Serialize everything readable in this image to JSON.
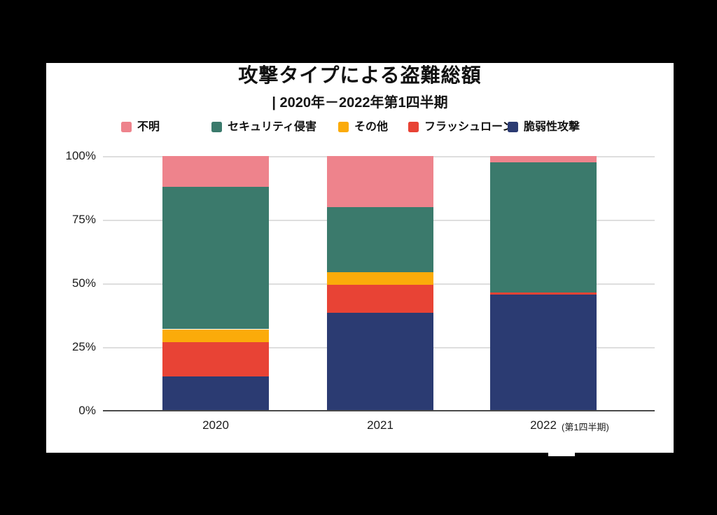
{
  "page": {
    "background": "#000000",
    "card_background": "#ffffff",
    "gridline_color": "#dedede",
    "axis_line_color": "#4a4a4a",
    "text_color": "#111111"
  },
  "header": {
    "title": "攻撃タイプによる盗難総額",
    "subtitle": "| 2020年－2022年第1四半期"
  },
  "chart_data": {
    "type": "bar",
    "stacked": true,
    "orientation": "vertical",
    "title": "攻撃タイプによる盗難総額",
    "subtitle": "2020年－2022年第1四半期",
    "unit": "%",
    "ylim": [
      0,
      100
    ],
    "grid": true,
    "legend_position": "top",
    "categories": [
      {
        "label": "2020",
        "suffix": ""
      },
      {
        "label": "2021",
        "suffix": ""
      },
      {
        "label": "2022",
        "suffix": "(第1四半期)"
      }
    ],
    "series": [
      {
        "name": "脆弱性攻撃",
        "color": "#2b3b72",
        "values": [
          13.5,
          38.5,
          45.5
        ]
      },
      {
        "name": "フラッシュローン",
        "color": "#e84335",
        "values": [
          13.5,
          11.0,
          1.0
        ]
      },
      {
        "name": "その他",
        "color": "#fbab0a",
        "values": [
          5.0,
          5.0,
          0.0
        ]
      },
      {
        "name": "セキュリティ侵害",
        "color": "#3b7a6c",
        "values": [
          56.0,
          25.5,
          51.0
        ]
      },
      {
        "name": "不明",
        "color": "#ee838c",
        "values": [
          12.0,
          20.0,
          2.5
        ]
      }
    ],
    "legend_order": [
      "不明",
      "セキュリティ侵害",
      "その他",
      "フラッシュローン",
      "脆弱性攻撃"
    ],
    "y_axis": [
      {
        "label": "100%",
        "value": 100
      },
      {
        "label": "75%",
        "value": 75
      },
      {
        "label": "50%",
        "value": 50
      },
      {
        "label": "25%",
        "value": 25
      },
      {
        "label": "0%",
        "value": 0
      }
    ]
  }
}
